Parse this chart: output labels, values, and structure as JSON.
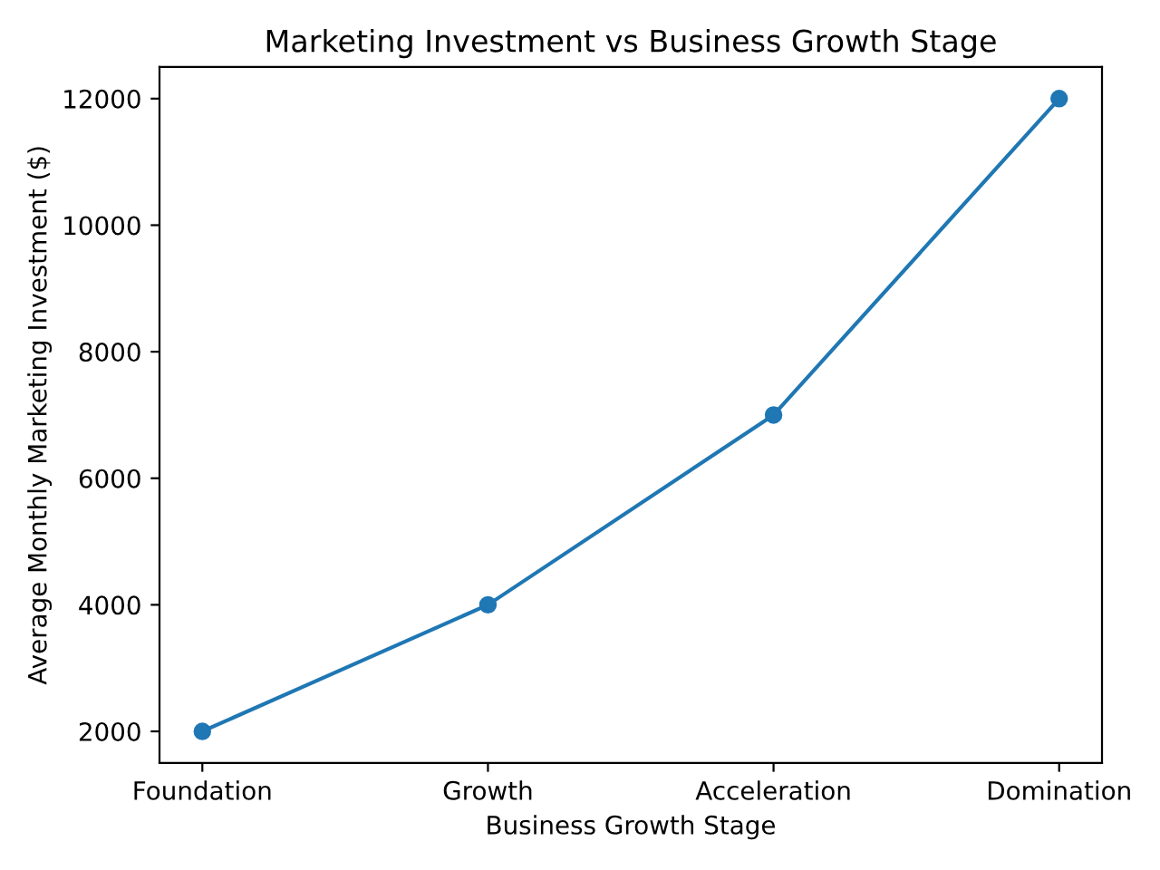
{
  "chart_data": {
    "type": "line",
    "title": "Marketing Investment vs Business Growth Stage",
    "xlabel": "Business Growth Stage",
    "ylabel": "Average Monthly Marketing Investment ($)",
    "categories": [
      "Foundation",
      "Growth",
      "Acceleration",
      "Domination"
    ],
    "series": [
      {
        "color": "#1f77b4",
        "values": [
          2000,
          4000,
          7000,
          12000
        ]
      }
    ],
    "ylim": [
      1500,
      12500
    ],
    "yticks": [
      2000,
      4000,
      6000,
      8000,
      10000,
      12000
    ],
    "marker": "circle",
    "line_style": "solid",
    "grid": false
  }
}
